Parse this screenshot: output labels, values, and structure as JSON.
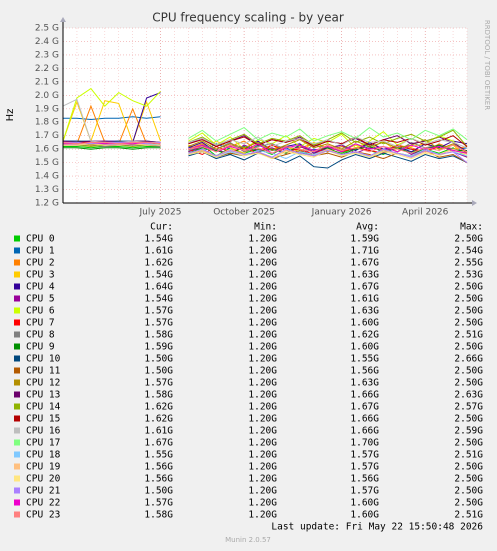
{
  "chart_data": {
    "type": "line",
    "title": "CPU frequency scaling - by year",
    "y_label": "Hz",
    "side_text": "RRDTOOL / TOBI OETIKER",
    "ylim": [
      1.2,
      2.5
    ],
    "yticks": [
      {
        "value": 1.2,
        "label": "1.2 G"
      },
      {
        "value": 1.3,
        "label": "1.3 G"
      },
      {
        "value": 1.4,
        "label": "1.4 G"
      },
      {
        "value": 1.5,
        "label": "1.5 G"
      },
      {
        "value": 1.6,
        "label": "1.6 G"
      },
      {
        "value": 1.7,
        "label": "1.7 G"
      },
      {
        "value": 1.8,
        "label": "1.8 G"
      },
      {
        "value": 1.9,
        "label": "1.9 G"
      },
      {
        "value": 2.0,
        "label": "2.0 G"
      },
      {
        "value": 2.1,
        "label": "2.1 G"
      },
      {
        "value": 2.2,
        "label": "2.2 G"
      },
      {
        "value": 2.3,
        "label": "2.3 G"
      },
      {
        "value": 2.4,
        "label": "2.4 G"
      },
      {
        "value": 2.5,
        "label": "2.5 G"
      }
    ],
    "grid": true,
    "categories": [
      null,
      null,
      null,
      null,
      null,
      null,
      null,
      "July 2025",
      null,
      null,
      null,
      null,
      null,
      "October 2025",
      null,
      null,
      null,
      null,
      null,
      null,
      "January 2026",
      null,
      null,
      null,
      null,
      null,
      "April 2026",
      null,
      null,
      null
    ],
    "legend_headers": [
      "Cur:",
      "Min:",
      "Avg:",
      "Max:"
    ],
    "series": [
      {
        "name": "CPU 0",
        "color": "#00cc00",
        "cur": "1.54G",
        "min": "1.20G",
        "avg": "1.59G",
        "max": "2.50G",
        "values": [
          1.62,
          1.62,
          1.61,
          1.62,
          1.62,
          1.61,
          1.62,
          1.62,
          null,
          1.58,
          1.63,
          1.55,
          1.61,
          1.57,
          1.6,
          1.56,
          1.62,
          1.58,
          1.55,
          1.6,
          1.57,
          1.61,
          1.59,
          1.56,
          1.62,
          1.58,
          1.6,
          1.57,
          1.61,
          1.54
        ]
      },
      {
        "name": "CPU 1",
        "color": "#0066b3",
        "cur": "1.61G",
        "min": "1.20G",
        "avg": "1.71G",
        "max": "2.54G",
        "values": [
          1.83,
          1.83,
          1.82,
          1.83,
          1.83,
          1.84,
          1.83,
          1.84,
          null,
          1.62,
          1.58,
          1.64,
          1.6,
          1.57,
          1.63,
          1.59,
          1.61,
          1.56,
          1.6,
          1.58,
          1.62,
          1.59,
          1.64,
          1.57,
          1.61,
          1.6,
          1.58,
          1.63,
          1.59,
          1.61
        ]
      },
      {
        "name": "CPU 2",
        "color": "#ff8000",
        "cur": "1.62G",
        "min": "1.20G",
        "avg": "1.67G",
        "max": "2.55G",
        "values": [
          1.65,
          1.64,
          1.92,
          1.65,
          1.64,
          1.9,
          1.64,
          1.65,
          null,
          1.6,
          1.64,
          1.58,
          1.62,
          1.66,
          1.59,
          1.63,
          1.57,
          1.61,
          1.64,
          1.58,
          1.62,
          1.6,
          1.65,
          1.59,
          1.63,
          1.61,
          1.58,
          1.64,
          1.6,
          1.62
        ]
      },
      {
        "name": "CPU 3",
        "color": "#ffcc00",
        "cur": "1.54G",
        "min": "1.20G",
        "avg": "1.63G",
        "max": "2.53G",
        "values": [
          1.66,
          1.95,
          1.66,
          1.96,
          1.94,
          1.65,
          1.95,
          1.66,
          null,
          1.63,
          1.59,
          1.66,
          1.61,
          1.57,
          1.64,
          1.6,
          1.62,
          1.58,
          1.65,
          1.61,
          1.59,
          1.63,
          1.6,
          1.66,
          1.58,
          1.62,
          1.64,
          1.6,
          1.63,
          1.54
        ]
      },
      {
        "name": "CPU 4",
        "color": "#330099",
        "cur": "1.64G",
        "min": "1.20G",
        "avg": "1.67G",
        "max": "2.50G",
        "values": [
          1.66,
          1.66,
          1.65,
          1.66,
          1.66,
          1.65,
          1.98,
          2.02,
          null,
          1.61,
          1.65,
          1.58,
          1.63,
          1.6,
          1.66,
          1.59,
          1.62,
          1.64,
          1.57,
          1.61,
          1.63,
          1.59,
          1.65,
          1.6,
          1.62,
          1.58,
          1.64,
          1.61,
          1.66,
          1.64
        ]
      },
      {
        "name": "CPU 5",
        "color": "#990099",
        "cur": "1.54G",
        "min": "1.20G",
        "avg": "1.61G",
        "max": "2.50G",
        "values": [
          1.65,
          1.65,
          1.64,
          1.65,
          1.65,
          1.64,
          1.65,
          1.65,
          null,
          1.58,
          1.62,
          1.6,
          1.56,
          1.63,
          1.59,
          1.61,
          1.57,
          1.62,
          1.58,
          1.6,
          1.63,
          1.57,
          1.61,
          1.59,
          1.62,
          1.56,
          1.6,
          1.63,
          1.58,
          1.54
        ]
      },
      {
        "name": "CPU 6",
        "color": "#ccff00",
        "cur": "1.57G",
        "min": "1.20G",
        "avg": "1.63G",
        "max": "2.50G",
        "values": [
          1.66,
          1.98,
          2.05,
          1.92,
          2.02,
          1.96,
          1.92,
          2.03,
          null,
          1.66,
          1.72,
          1.63,
          1.69,
          1.6,
          1.67,
          1.64,
          1.7,
          1.62,
          1.68,
          1.65,
          1.71,
          1.61,
          1.66,
          1.73,
          1.63,
          1.68,
          1.64,
          1.7,
          1.66,
          1.57
        ]
      },
      {
        "name": "CPU 7",
        "color": "#ff0000",
        "cur": "1.57G",
        "min": "1.20G",
        "avg": "1.60G",
        "max": "2.50G",
        "values": [
          1.64,
          1.64,
          1.63,
          1.64,
          1.64,
          1.63,
          1.64,
          1.64,
          null,
          1.6,
          1.56,
          1.62,
          1.58,
          1.61,
          1.57,
          1.63,
          1.59,
          1.6,
          1.56,
          1.62,
          1.58,
          1.61,
          1.59,
          1.57,
          1.63,
          1.6,
          1.58,
          1.62,
          1.59,
          1.57
        ]
      },
      {
        "name": "CPU 8",
        "color": "#808080",
        "cur": "1.58G",
        "min": "1.20G",
        "avg": "1.62G",
        "max": "2.51G",
        "values": [
          1.63,
          1.63,
          1.63,
          1.62,
          1.63,
          1.63,
          1.63,
          1.62,
          null,
          1.59,
          1.63,
          1.6,
          1.65,
          1.58,
          1.62,
          1.64,
          1.6,
          1.57,
          1.63,
          1.61,
          1.59,
          1.64,
          1.6,
          1.62,
          1.58,
          1.65,
          1.61,
          1.63,
          1.6,
          1.58
        ]
      },
      {
        "name": "CPU 9",
        "color": "#008f00",
        "cur": "1.59G",
        "min": "1.20G",
        "avg": "1.60G",
        "max": "2.50G",
        "values": [
          1.61,
          1.61,
          1.6,
          1.61,
          1.61,
          1.6,
          1.61,
          1.61,
          null,
          1.57,
          1.61,
          1.59,
          1.56,
          1.62,
          1.58,
          1.6,
          1.57,
          1.63,
          1.59,
          1.61,
          1.56,
          1.6,
          1.62,
          1.58,
          1.61,
          1.57,
          1.6,
          1.63,
          1.59,
          1.59
        ]
      },
      {
        "name": "CPU 10",
        "color": "#00487d",
        "cur": "1.50G",
        "min": "1.20G",
        "avg": "1.55G",
        "max": "2.66G",
        "values": [
          1.66,
          1.66,
          1.66,
          1.65,
          1.66,
          1.66,
          1.66,
          1.65,
          null,
          1.55,
          1.58,
          1.53,
          1.56,
          1.52,
          1.57,
          1.54,
          1.5,
          1.55,
          1.47,
          1.46,
          1.52,
          1.56,
          1.53,
          1.57,
          1.54,
          1.51,
          1.56,
          1.53,
          1.55,
          1.5
        ]
      },
      {
        "name": "CPU 11",
        "color": "#b35a00",
        "cur": "1.50G",
        "min": "1.20G",
        "avg": "1.56G",
        "max": "2.50G",
        "values": [
          1.65,
          1.64,
          1.65,
          1.65,
          1.64,
          1.65,
          1.65,
          1.64,
          null,
          1.56,
          1.59,
          1.54,
          1.57,
          1.55,
          1.58,
          1.53,
          1.56,
          1.59,
          1.55,
          1.57,
          1.54,
          1.58,
          1.56,
          1.53,
          1.57,
          1.55,
          1.59,
          1.54,
          1.56,
          1.5
        ]
      },
      {
        "name": "CPU 12",
        "color": "#b38f00",
        "cur": "1.57G",
        "min": "1.20G",
        "avg": "1.63G",
        "max": "2.50G",
        "values": [
          1.64,
          1.64,
          1.63,
          1.64,
          1.64,
          1.64,
          1.63,
          1.64,
          null,
          1.62,
          1.66,
          1.6,
          1.64,
          1.61,
          1.65,
          1.59,
          1.63,
          1.67,
          1.61,
          1.64,
          1.6,
          1.66,
          1.62,
          1.65,
          1.61,
          1.63,
          1.67,
          1.6,
          1.64,
          1.57
        ]
      },
      {
        "name": "CPU 13",
        "color": "#6b006b",
        "cur": "1.58G",
        "min": "1.20G",
        "avg": "1.66G",
        "max": "2.63G",
        "values": [
          1.66,
          1.65,
          1.66,
          1.66,
          1.65,
          1.66,
          1.66,
          1.65,
          null,
          1.64,
          1.68,
          1.62,
          1.66,
          1.7,
          1.63,
          1.67,
          1.65,
          1.69,
          1.62,
          1.66,
          1.64,
          1.68,
          1.63,
          1.67,
          1.7,
          1.64,
          1.66,
          1.69,
          1.65,
          1.58
        ]
      },
      {
        "name": "CPU 14",
        "color": "#8fb300",
        "cur": "1.62G",
        "min": "1.20G",
        "avg": "1.67G",
        "max": "2.57G",
        "values": [
          1.63,
          1.63,
          1.62,
          1.63,
          1.63,
          1.62,
          1.63,
          1.63,
          null,
          1.65,
          1.69,
          1.63,
          1.67,
          1.71,
          1.64,
          1.68,
          1.66,
          1.7,
          1.63,
          1.67,
          1.72,
          1.65,
          1.69,
          1.64,
          1.68,
          1.71,
          1.66,
          1.69,
          1.74,
          1.62
        ]
      },
      {
        "name": "CPU 15",
        "color": "#b30000",
        "cur": "1.62G",
        "min": "1.20G",
        "avg": "1.66G",
        "max": "2.50G",
        "values": [
          1.65,
          1.65,
          1.65,
          1.64,
          1.65,
          1.65,
          1.65,
          1.64,
          null,
          1.64,
          1.67,
          1.62,
          1.66,
          1.69,
          1.63,
          1.67,
          1.65,
          1.68,
          1.62,
          1.66,
          1.64,
          1.69,
          1.63,
          1.67,
          1.65,
          1.68,
          1.63,
          1.66,
          1.7,
          1.62
        ]
      },
      {
        "name": "CPU 16",
        "color": "#bebebe",
        "cur": "1.61G",
        "min": "1.20G",
        "avg": "1.66G",
        "max": "2.59G",
        "values": [
          1.92,
          1.97,
          1.66,
          1.65,
          1.65,
          1.66,
          1.65,
          1.65,
          null,
          1.65,
          1.68,
          1.63,
          1.67,
          1.64,
          1.69,
          1.62,
          1.66,
          1.68,
          1.64,
          1.67,
          1.63,
          1.69,
          1.65,
          1.66,
          1.62,
          1.68,
          1.64,
          1.67,
          1.65,
          1.61
        ]
      },
      {
        "name": "CPU 17",
        "color": "#80ff80",
        "cur": "1.67G",
        "min": "1.20G",
        "avg": "1.70G",
        "max": "2.50G",
        "values": [
          1.64,
          1.64,
          1.64,
          1.63,
          1.64,
          1.64,
          1.63,
          1.64,
          null,
          1.68,
          1.74,
          1.66,
          1.71,
          1.76,
          1.67,
          1.72,
          1.69,
          1.75,
          1.66,
          1.7,
          1.73,
          1.68,
          1.76,
          1.69,
          1.72,
          1.67,
          1.74,
          1.7,
          1.75,
          1.67
        ]
      },
      {
        "name": "CPU 18",
        "color": "#80c9ff",
        "cur": "1.55G",
        "min": "1.20G",
        "avg": "1.57G",
        "max": "2.51G",
        "values": [
          1.64,
          1.63,
          1.64,
          1.64,
          1.63,
          1.64,
          1.64,
          1.63,
          null,
          1.56,
          1.6,
          1.54,
          1.58,
          1.55,
          1.59,
          1.57,
          1.53,
          1.58,
          1.56,
          1.6,
          1.55,
          1.58,
          1.54,
          1.59,
          1.57,
          1.55,
          1.6,
          1.56,
          1.58,
          1.55
        ]
      },
      {
        "name": "CPU 19",
        "color": "#ffc080",
        "cur": "1.56G",
        "min": "1.20G",
        "avg": "1.57G",
        "max": "2.50G",
        "values": [
          1.63,
          1.63,
          1.64,
          1.63,
          1.63,
          1.64,
          1.63,
          1.63,
          null,
          1.57,
          1.59,
          1.55,
          1.6,
          1.56,
          1.58,
          1.54,
          1.59,
          1.57,
          1.55,
          1.6,
          1.56,
          1.58,
          1.55,
          1.59,
          1.57,
          1.54,
          1.58,
          1.56,
          1.6,
          1.56
        ]
      },
      {
        "name": "CPU 20",
        "color": "#ffe680",
        "cur": "1.56G",
        "min": "1.20G",
        "avg": "1.56G",
        "max": "2.50G",
        "values": [
          1.64,
          1.64,
          1.64,
          1.65,
          1.64,
          1.64,
          1.64,
          1.65,
          null,
          1.56,
          1.58,
          1.54,
          1.59,
          1.55,
          1.57,
          1.53,
          1.58,
          1.56,
          1.54,
          1.59,
          1.55,
          1.57,
          1.54,
          1.58,
          1.56,
          1.53,
          1.57,
          1.55,
          1.59,
          1.56
        ]
      },
      {
        "name": "CPU 21",
        "color": "#aa80ff",
        "cur": "1.50G",
        "min": "1.20G",
        "avg": "1.57G",
        "max": "2.50G",
        "values": [
          1.65,
          1.65,
          1.64,
          1.65,
          1.65,
          1.65,
          1.64,
          1.65,
          null,
          1.57,
          1.6,
          1.55,
          1.59,
          1.56,
          1.58,
          1.54,
          1.6,
          1.57,
          1.55,
          1.59,
          1.56,
          1.58,
          1.55,
          1.6,
          1.57,
          1.54,
          1.59,
          1.56,
          1.58,
          1.5
        ]
      },
      {
        "name": "CPU 22",
        "color": "#ee00cc",
        "cur": "1.57G",
        "min": "1.20G",
        "avg": "1.60G",
        "max": "2.50G",
        "values": [
          1.64,
          1.64,
          1.65,
          1.64,
          1.64,
          1.64,
          1.65,
          1.64,
          null,
          1.6,
          1.63,
          1.58,
          1.62,
          1.59,
          1.64,
          1.57,
          1.61,
          1.63,
          1.59,
          1.62,
          1.58,
          1.64,
          1.6,
          1.62,
          1.58,
          1.63,
          1.6,
          1.62,
          1.59,
          1.57
        ]
      },
      {
        "name": "CPU 23",
        "color": "#ff8080",
        "cur": "1.58G",
        "min": "1.20G",
        "avg": "1.60G",
        "max": "2.51G",
        "values": [
          1.65,
          1.64,
          1.65,
          1.65,
          1.64,
          1.65,
          1.65,
          1.64,
          null,
          1.6,
          1.62,
          1.58,
          1.63,
          1.59,
          1.61,
          1.57,
          1.62,
          1.6,
          1.58,
          1.63,
          1.59,
          1.61,
          1.58,
          1.62,
          1.6,
          1.57,
          1.61,
          1.59,
          1.63,
          1.58
        ]
      }
    ],
    "last_update": "Last update: Fri May 22 15:50:48 2026",
    "footer": "Munin 2.0.57"
  }
}
